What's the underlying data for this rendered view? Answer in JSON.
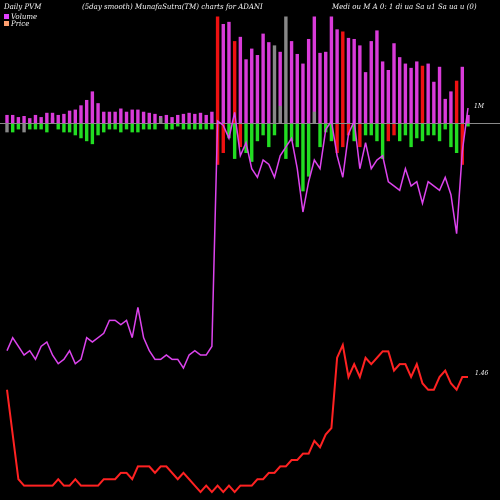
{
  "header": {
    "left": "Daily PVM",
    "center": "(5day smooth) MunafaSutra(TM) charts for ADANI",
    "right": "Medi ou M A 0: 1 di ua Sa u1 Sa ua u (0)"
  },
  "legend": {
    "volume_label": "Volume",
    "price_label": "Price",
    "volume_color": "#e040ff",
    "price_color": "#ffa070"
  },
  "colors": {
    "background": "#000000",
    "zero_line": "#8a8a8a",
    "volume_up": "#d93bd9",
    "volume_down": "#ee1111",
    "volume_neutral": "#888888",
    "money_positive": "#d93bd9",
    "money_negative": "#22dd22",
    "volume_line": "#dd44ee",
    "price_line": "#ff2222"
  },
  "chart_data": {
    "type": "line",
    "series": [
      {
        "name": "Volume",
        "values": [
          0.44,
          0.47,
          0.45,
          0.43,
          0.44,
          0.42,
          0.45,
          0.46,
          0.43,
          0.41,
          0.42,
          0.44,
          0.41,
          0.42,
          0.47,
          0.46,
          0.47,
          0.48,
          0.51,
          0.51,
          0.5,
          0.51,
          0.47,
          0.54,
          0.47,
          0.44,
          0.42,
          0.42,
          0.43,
          0.42,
          0.42,
          0.4,
          0.43,
          0.44,
          0.43,
          0.43,
          0.45,
          0.97,
          0.96,
          0.93,
          0.99,
          0.89,
          0.92,
          0.86,
          0.84,
          0.88,
          0.87,
          0.84,
          0.89,
          0.91,
          0.93,
          0.86,
          0.76,
          0.83,
          0.88,
          0.86,
          0.95,
          0.97,
          0.89,
          0.84,
          0.94,
          0.97,
          0.86,
          0.92,
          0.86,
          0.88,
          0.89,
          0.83,
          0.82,
          0.81,
          0.86,
          0.82,
          0.83,
          0.78,
          0.83,
          0.82,
          0.81,
          0.84,
          0.8,
          0.71,
          0.9,
          1.0
        ],
        "last_value_label": "1M",
        "color": "#dd44ee"
      },
      {
        "name": "Price",
        "values": [
          1.3,
          1.23,
          1.16,
          1.15,
          1.15,
          1.15,
          1.15,
          1.15,
          1.15,
          1.16,
          1.15,
          1.15,
          1.16,
          1.15,
          1.15,
          1.15,
          1.15,
          1.16,
          1.16,
          1.16,
          1.17,
          1.17,
          1.16,
          1.18,
          1.18,
          1.18,
          1.17,
          1.18,
          1.18,
          1.17,
          1.16,
          1.17,
          1.16,
          1.15,
          1.14,
          1.15,
          1.14,
          1.15,
          1.14,
          1.15,
          1.14,
          1.15,
          1.15,
          1.15,
          1.16,
          1.16,
          1.17,
          1.17,
          1.18,
          1.18,
          1.19,
          1.19,
          1.2,
          1.2,
          1.22,
          1.21,
          1.23,
          1.24,
          1.35,
          1.37,
          1.32,
          1.34,
          1.32,
          1.35,
          1.34,
          1.35,
          1.36,
          1.36,
          1.33,
          1.34,
          1.34,
          1.32,
          1.34,
          1.31,
          1.3,
          1.3,
          1.32,
          1.33,
          1.31,
          1.3,
          1.32,
          1.32
        ],
        "last_value_label": "1.46",
        "color": "#ff2222"
      }
    ],
    "volume_bars": {
      "values": [
        8,
        8,
        6,
        7,
        5,
        8,
        6,
        10,
        10,
        8,
        9,
        12,
        13,
        17,
        22,
        30,
        19,
        11,
        11,
        11,
        14,
        11,
        13,
        13,
        11,
        10,
        9,
        7,
        8,
        6,
        8,
        9,
        10,
        9,
        10,
        8,
        11,
        100,
        93,
        95,
        77,
        81,
        60,
        70,
        64,
        84,
        76,
        73,
        67,
        100,
        77,
        65,
        56,
        79,
        100,
        66,
        67,
        100,
        88,
        86,
        80,
        79,
        73,
        48,
        77,
        87,
        58,
        50,
        75,
        62,
        56,
        52,
        58,
        54,
        56,
        39,
        53,
        23,
        30,
        40,
        53,
        8
      ],
      "directions": [
        "u",
        "u",
        "u",
        "u",
        "u",
        "u",
        "u",
        "u",
        "u",
        "u",
        "u",
        "u",
        "u",
        "u",
        "u",
        "u",
        "u",
        "u",
        "u",
        "u",
        "u",
        "u",
        "u",
        "u",
        "u",
        "u",
        "u",
        "u",
        "u",
        "u",
        "u",
        "u",
        "u",
        "u",
        "u",
        "u",
        "u",
        "d",
        "u",
        "u",
        "d",
        "u",
        "u",
        "u",
        "u",
        "u",
        "u",
        "n",
        "u",
        "n",
        "u",
        "u",
        "u",
        "u",
        "u",
        "u",
        "u",
        "u",
        "u",
        "d",
        "u",
        "u",
        "u",
        "u",
        "u",
        "u",
        "u",
        "u",
        "u",
        "u",
        "u",
        "u",
        "u",
        "d",
        "u",
        "u",
        "u",
        "u",
        "u",
        "d",
        "u",
        "u"
      ]
    },
    "money_bars": {
      "values": [
        -3,
        -3,
        -2,
        -3,
        -2,
        -2,
        -2,
        -3,
        2,
        -2,
        -3,
        -3,
        -4,
        -5,
        -6,
        -7,
        -4,
        -3,
        -2,
        -2,
        -3,
        -2,
        -3,
        -3,
        -2,
        -2,
        -2,
        2,
        -2,
        -2,
        -1,
        -2,
        -2,
        -2,
        -2,
        -2,
        -2,
        -14,
        -10,
        -5,
        -12,
        -8,
        -10,
        -13,
        -6,
        -4,
        -8,
        -4,
        6,
        -12,
        -6,
        -8,
        -23,
        -18,
        4,
        -8,
        -3,
        -6,
        -10,
        -8,
        -4,
        -6,
        -8,
        -4,
        -4,
        -6,
        -12,
        -6,
        -4,
        -6,
        -4,
        -8,
        -5,
        -6,
        -4,
        -4,
        -6,
        -2,
        -8,
        -10,
        -14,
        -1
      ],
      "directions": [
        "n",
        "u",
        "u",
        "n",
        "u",
        "u",
        "u",
        "u",
        "u",
        "u",
        "u",
        "u",
        "u",
        "u",
        "u",
        "u",
        "u",
        "u",
        "u",
        "u",
        "u",
        "u",
        "u",
        "u",
        "u",
        "u",
        "u",
        "n",
        "u",
        "u",
        "u",
        "u",
        "u",
        "u",
        "u",
        "u",
        "u",
        "d",
        "d",
        "u",
        "u",
        "d",
        "u",
        "u",
        "u",
        "u",
        "u",
        "u",
        "n",
        "u",
        "u",
        "u",
        "u",
        "u",
        "n",
        "u",
        "u",
        "u",
        "d",
        "d",
        "d",
        "u",
        "d",
        "u",
        "u",
        "u",
        "u",
        "d",
        "d",
        "u",
        "u",
        "u",
        "u",
        "u",
        "u",
        "u",
        "u",
        "u",
        "u",
        "u",
        "d",
        "u"
      ]
    },
    "legend_position": "top-left",
    "grid": false
  }
}
